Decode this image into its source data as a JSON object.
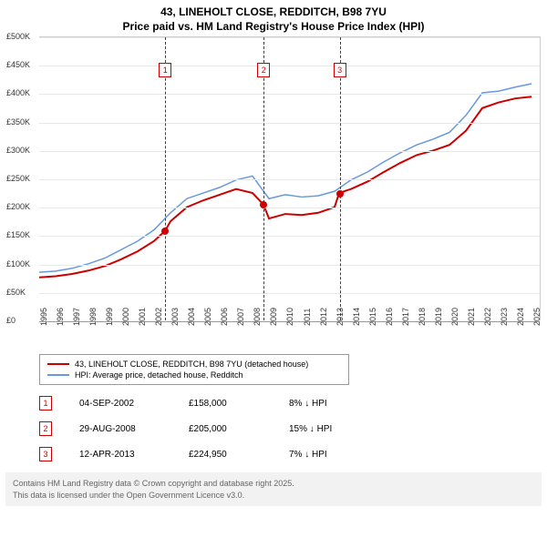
{
  "title": "43, LINEHOLT CLOSE, REDDITCH, B98 7YU",
  "subtitle": "Price paid vs. HM Land Registry's House Price Index (HPI)",
  "chart": {
    "type": "line",
    "background_color": "#ffffff",
    "grid_color": "#e8e8e8",
    "ylim": [
      0,
      500000
    ],
    "ytick_step": 50000,
    "ytick_labels": [
      "£0",
      "£50K",
      "£100K",
      "£150K",
      "£200K",
      "£250K",
      "£300K",
      "£350K",
      "£400K",
      "£450K",
      "£500K"
    ],
    "xlim": [
      1995,
      2025.5
    ],
    "xtick_labels": [
      "1995",
      "1996",
      "1997",
      "1998",
      "1999",
      "2000",
      "2001",
      "2002",
      "2003",
      "2004",
      "2005",
      "2006",
      "2007",
      "2008",
      "2009",
      "2010",
      "2011",
      "2012",
      "2013",
      "2014",
      "2015",
      "2016",
      "2017",
      "2018",
      "2019",
      "2020",
      "2021",
      "2022",
      "2023",
      "2024",
      "2025"
    ],
    "series": [
      {
        "name": "property",
        "label": "43, LINEHOLT CLOSE, REDDITCH, B98 7YU (detached house)",
        "color": "#cc0000",
        "line_width": 2,
        "points": [
          [
            1995,
            76000
          ],
          [
            1996,
            78000
          ],
          [
            1997,
            82000
          ],
          [
            1998,
            88000
          ],
          [
            1999,
            96000
          ],
          [
            2000,
            108000
          ],
          [
            2001,
            122000
          ],
          [
            2002,
            140000
          ],
          [
            2002.67,
            158000
          ],
          [
            2003,
            175000
          ],
          [
            2004,
            200000
          ],
          [
            2005,
            212000
          ],
          [
            2006,
            222000
          ],
          [
            2007,
            232000
          ],
          [
            2008,
            225000
          ],
          [
            2008.66,
            205000
          ],
          [
            2009,
            180000
          ],
          [
            2010,
            188000
          ],
          [
            2011,
            186000
          ],
          [
            2012,
            190000
          ],
          [
            2013,
            200000
          ],
          [
            2013.28,
            224950
          ],
          [
            2014,
            232000
          ],
          [
            2015,
            245000
          ],
          [
            2016,
            262000
          ],
          [
            2017,
            278000
          ],
          [
            2018,
            292000
          ],
          [
            2019,
            300000
          ],
          [
            2020,
            310000
          ],
          [
            2021,
            335000
          ],
          [
            2022,
            375000
          ],
          [
            2023,
            385000
          ],
          [
            2024,
            392000
          ],
          [
            2025,
            395000
          ]
        ]
      },
      {
        "name": "hpi",
        "label": "HPI: Average price, detached house, Redditch",
        "color": "#6699dd",
        "line_width": 1.5,
        "points": [
          [
            1995,
            85000
          ],
          [
            1996,
            87000
          ],
          [
            1997,
            92000
          ],
          [
            1998,
            100000
          ],
          [
            1999,
            110000
          ],
          [
            2000,
            125000
          ],
          [
            2001,
            140000
          ],
          [
            2002,
            160000
          ],
          [
            2003,
            190000
          ],
          [
            2004,
            215000
          ],
          [
            2005,
            225000
          ],
          [
            2006,
            235000
          ],
          [
            2007,
            248000
          ],
          [
            2008,
            255000
          ],
          [
            2009,
            215000
          ],
          [
            2010,
            222000
          ],
          [
            2011,
            218000
          ],
          [
            2012,
            220000
          ],
          [
            2013,
            228000
          ],
          [
            2014,
            248000
          ],
          [
            2015,
            262000
          ],
          [
            2016,
            280000
          ],
          [
            2017,
            296000
          ],
          [
            2018,
            310000
          ],
          [
            2019,
            320000
          ],
          [
            2020,
            332000
          ],
          [
            2021,
            362000
          ],
          [
            2022,
            402000
          ],
          [
            2023,
            405000
          ],
          [
            2024,
            412000
          ],
          [
            2025,
            418000
          ]
        ]
      }
    ],
    "markers": [
      {
        "n": "1",
        "x": 2002.67,
        "y": 158000,
        "color": "#cc0000"
      },
      {
        "n": "2",
        "x": 2008.66,
        "y": 205000,
        "color": "#cc0000"
      },
      {
        "n": "3",
        "x": 2013.28,
        "y": 224950,
        "color": "#cc0000"
      }
    ],
    "vlines_color": "#cc0000"
  },
  "events": [
    {
      "n": "1",
      "date": "04-SEP-2002",
      "price": "£158,000",
      "diff": "8% ↓ HPI",
      "color": "#cc0000"
    },
    {
      "n": "2",
      "date": "29-AUG-2008",
      "price": "£205,000",
      "diff": "15% ↓ HPI",
      "color": "#cc0000"
    },
    {
      "n": "3",
      "date": "12-APR-2013",
      "price": "£224,950",
      "diff": "7% ↓ HPI",
      "color": "#cc0000"
    }
  ],
  "footer_line1": "Contains HM Land Registry data © Crown copyright and database right 2025.",
  "footer_line2": "This data is licensed under the Open Government Licence v3.0."
}
